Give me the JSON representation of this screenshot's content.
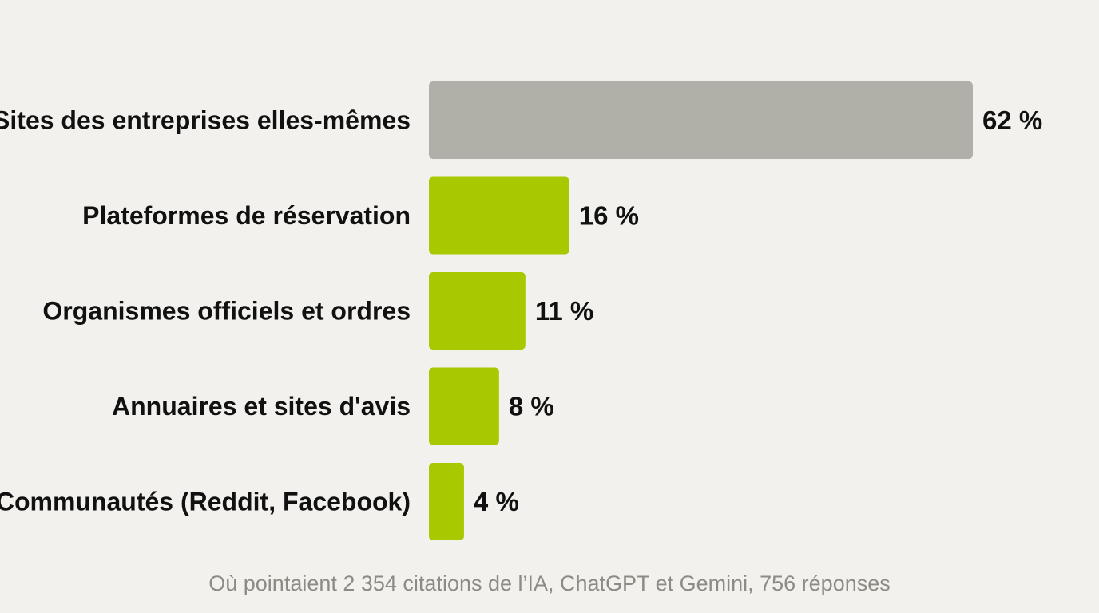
{
  "chart_data": {
    "type": "bar",
    "orientation": "horizontal",
    "categories": [
      "Sites des entreprises elles-mêmes",
      "Plateformes de réservation",
      "Organismes officiels et ordres",
      "Annuaires et sites d'avis",
      "Communautés (Reddit, Facebook)"
    ],
    "values": [
      62,
      16,
      11,
      8,
      4
    ],
    "value_labels": [
      "62 %",
      "16 %",
      "11 %",
      "8 %",
      "4 %"
    ],
    "colors": [
      "#b0b0a8",
      "#a8c800",
      "#a8c800",
      "#a8c800",
      "#a8c800"
    ],
    "xlim": [
      0,
      62
    ],
    "grid": false,
    "caption": "Où pointaient 2 354 citations de l’IA, ChatGPT et Gemini, 756 réponses"
  }
}
